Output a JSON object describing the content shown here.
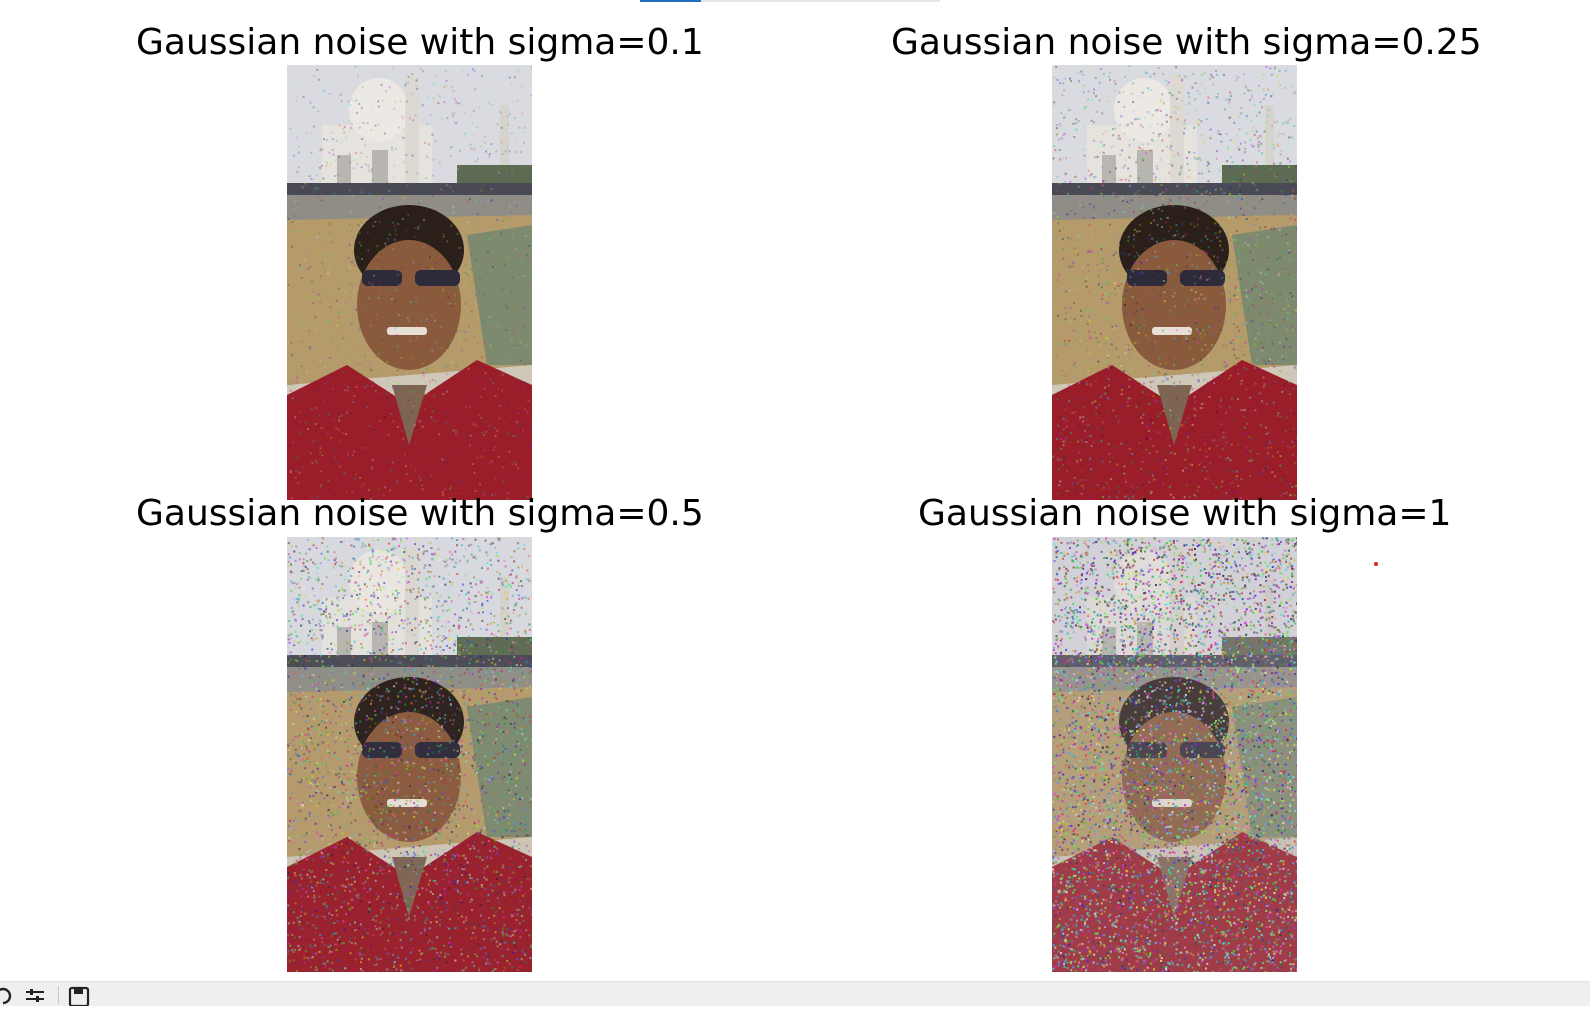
{
  "figure": {
    "panels": [
      {
        "title": "Gaussian noise with sigma=0.1",
        "sigma": 0.1
      },
      {
        "title": "Gaussian noise with sigma=0.25",
        "sigma": 0.25
      },
      {
        "title": "Gaussian noise with sigma=0.5",
        "sigma": 0.5
      },
      {
        "title": "Gaussian noise with sigma=1",
        "sigma": 1
      }
    ]
  },
  "toolbar": {
    "icons": [
      "home-icon",
      "configure-subplots-icon",
      "save-icon"
    ]
  },
  "colors": {
    "tab_active": "#1f6fbf",
    "marker": "#e02020",
    "toolbar_bg": "#efefef"
  }
}
